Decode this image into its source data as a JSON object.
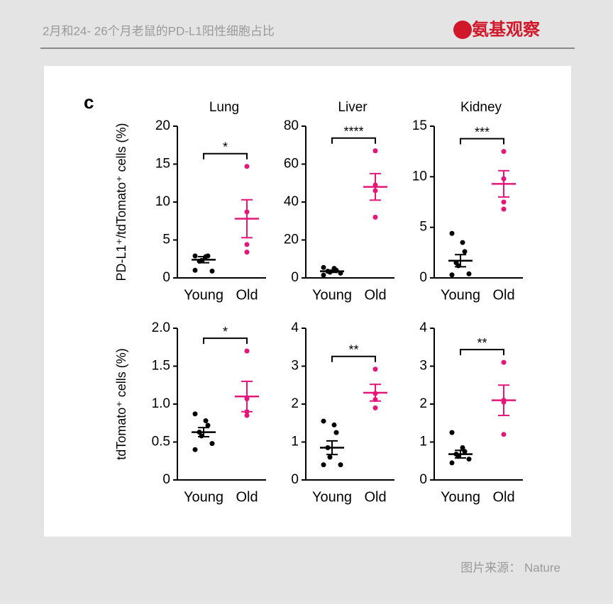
{
  "header": {
    "title": "2月和24- 26个月老鼠的PD-L1阳性细胞占比",
    "logo": "氨基观察"
  },
  "panel_label": "c",
  "source": "图片来源： Nature",
  "chart_data": [
    {
      "type": "dotplot",
      "title": "Lung",
      "ylabel": "PD-L1⁺/tdTomato⁺ cells (%)",
      "categories": [
        "Young",
        "Old"
      ],
      "colors": [
        "#000000",
        "#e6157a"
      ],
      "points": [
        [
          2.9,
          2.8,
          2.9,
          2.2,
          2.3,
          0.9,
          1.0
        ],
        [
          14.7,
          8.7,
          4.4,
          3.4
        ]
      ],
      "means": [
        2.4,
        7.8
      ],
      "sems": [
        0.4,
        2.5
      ],
      "significance": "*",
      "ylim": [
        0,
        20
      ],
      "yticks": [
        0,
        5,
        10,
        15,
        20
      ]
    },
    {
      "type": "dotplot",
      "title": "Liver",
      "categories": [
        "Young",
        "Old"
      ],
      "colors": [
        "#000000",
        "#e6157a"
      ],
      "points": [
        [
          5.5,
          5.0,
          4.0,
          3.5,
          3.0,
          2.5,
          1.5
        ],
        [
          67,
          49,
          46,
          32
        ]
      ],
      "means": [
        3.5,
        48
      ],
      "sems": [
        0.6,
        7
      ],
      "significance": "****",
      "ylim": [
        0,
        80
      ],
      "yticks": [
        0,
        20,
        40,
        60,
        80
      ]
    },
    {
      "type": "dotplot",
      "title": "Kidney",
      "categories": [
        "Young",
        "Old"
      ],
      "colors": [
        "#000000",
        "#e6157a"
      ],
      "points": [
        [
          4.4,
          3.5,
          2.6,
          1.5,
          1.2,
          0.4,
          0.3
        ],
        [
          12.5,
          9.8,
          7.5,
          6.8
        ]
      ],
      "means": [
        1.7,
        9.3
      ],
      "sems": [
        0.6,
        1.3
      ],
      "significance": "***",
      "ylim": [
        0,
        15
      ],
      "yticks": [
        0,
        5,
        10,
        15
      ]
    },
    {
      "type": "dotplot",
      "ylabel": "tdTomato⁺ cells (%)",
      "categories": [
        "Young",
        "Old"
      ],
      "colors": [
        "#000000",
        "#e6157a"
      ],
      "points": [
        [
          0.87,
          0.78,
          0.72,
          0.63,
          0.58,
          0.48,
          0.4
        ],
        [
          1.7,
          1.07,
          0.9,
          0.85
        ]
      ],
      "means": [
        0.63,
        1.1
      ],
      "sems": [
        0.06,
        0.2
      ],
      "significance": "*",
      "ylim": [
        0,
        2
      ],
      "yticks": [
        0,
        0.5,
        {
          "value": 1,
          "label": "1.0"
        },
        1.5,
        {
          "value": 2,
          "label": "2.0"
        }
      ]
    },
    {
      "type": "dotplot",
      "categories": [
        "Young",
        "Old"
      ],
      "colors": [
        "#000000",
        "#e6157a"
      ],
      "points": [
        [
          1.55,
          1.45,
          1.25,
          0.85,
          0.6,
          0.4,
          0.4
        ],
        [
          2.92,
          2.28,
          2.12,
          1.9
        ]
      ],
      "means": [
        0.85,
        2.3
      ],
      "sems": [
        0.18,
        0.22
      ],
      "significance": "**",
      "ylim": [
        0,
        4
      ],
      "yticks": [
        0,
        1,
        2,
        3,
        4
      ]
    },
    {
      "type": "dotplot",
      "categories": [
        "Young",
        "Old"
      ],
      "colors": [
        "#000000",
        "#e6157a"
      ],
      "points": [
        [
          1.25,
          0.85,
          0.75,
          0.68,
          0.62,
          0.55,
          0.45
        ],
        [
          3.1,
          2.1,
          2.05,
          1.2
        ]
      ],
      "means": [
        0.68,
        2.1
      ],
      "sems": [
        0.1,
        0.4
      ],
      "significance": "**",
      "ylim": [
        0,
        4
      ],
      "yticks": [
        0,
        1,
        2,
        3,
        4
      ]
    }
  ]
}
